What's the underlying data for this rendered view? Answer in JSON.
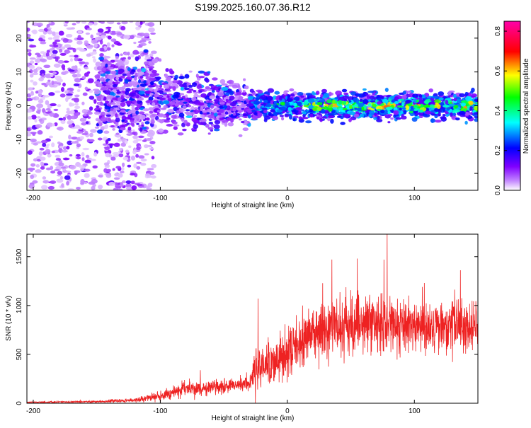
{
  "title": "S199.2025.160.07.36.R12",
  "chart_data": [
    {
      "type": "heatmap",
      "xlabel": "Height of straight line (km)",
      "ylabel": "Frequency (Hz)",
      "xlim": [
        -205,
        150
      ],
      "ylim": [
        -25,
        25
      ],
      "xticks": [
        -200,
        -100,
        0,
        100
      ],
      "yticks": [
        -20,
        -10,
        0,
        10,
        20
      ],
      "grid": false,
      "colorbar": {
        "label": "Normalized spectral amplitude",
        "range": [
          0,
          0.85
        ],
        "ticks": [
          0.0,
          0.2,
          0.4,
          0.6,
          0.8
        ],
        "colormap": [
          "#ffffff",
          "#8000ff",
          "#0000ff",
          "#00ffff",
          "#00ff00",
          "#ffff00",
          "#ff0000",
          "#ff00ff"
        ]
      },
      "features": [
        {
          "x_range": [
            -205,
            -110
          ],
          "y_range": [
            -25,
            25
          ],
          "amplitude": 0.12,
          "note_visible": false
        },
        {
          "x_range": [
            -110,
            -30
          ],
          "center_y": 0,
          "spread": 10,
          "amplitude": 0.2
        },
        {
          "x_range": [
            -30,
            150
          ],
          "center_y": 0,
          "spread": 4,
          "amplitude": 0.45
        }
      ]
    },
    {
      "type": "line",
      "xlabel": "Height of straight line (km)",
      "ylabel": "SNR (10 * v/v)",
      "xlim": [
        -205,
        150
      ],
      "ylim": [
        0,
        1730
      ],
      "xticks": [
        -200,
        -100,
        0,
        100
      ],
      "yticks": [
        0,
        500,
        1000,
        1500
      ],
      "grid": false,
      "series_color": "#ee2222",
      "envelope": {
        "x": [
          -205,
          -150,
          -120,
          -100,
          -80,
          -60,
          -40,
          -30,
          -25,
          -20,
          -10,
          0,
          10,
          20,
          30,
          40,
          60,
          80,
          100,
          120,
          150
        ],
        "mean": [
          10,
          15,
          30,
          80,
          140,
          160,
          180,
          200,
          320,
          380,
          430,
          500,
          620,
          720,
          760,
          780,
          800,
          800,
          790,
          790,
          800
        ],
        "spread": [
          8,
          12,
          25,
          60,
          90,
          80,
          70,
          80,
          250,
          250,
          250,
          260,
          280,
          300,
          320,
          320,
          330,
          320,
          300,
          300,
          300
        ]
      },
      "peaks": [
        {
          "x": 78.5,
          "y": 1730
        },
        {
          "x": 35,
          "y": 1470
        },
        {
          "x": 55,
          "y": 1480
        },
        {
          "x": -23,
          "y": 1070
        },
        {
          "x": 12,
          "y": 1000
        }
      ]
    }
  ]
}
